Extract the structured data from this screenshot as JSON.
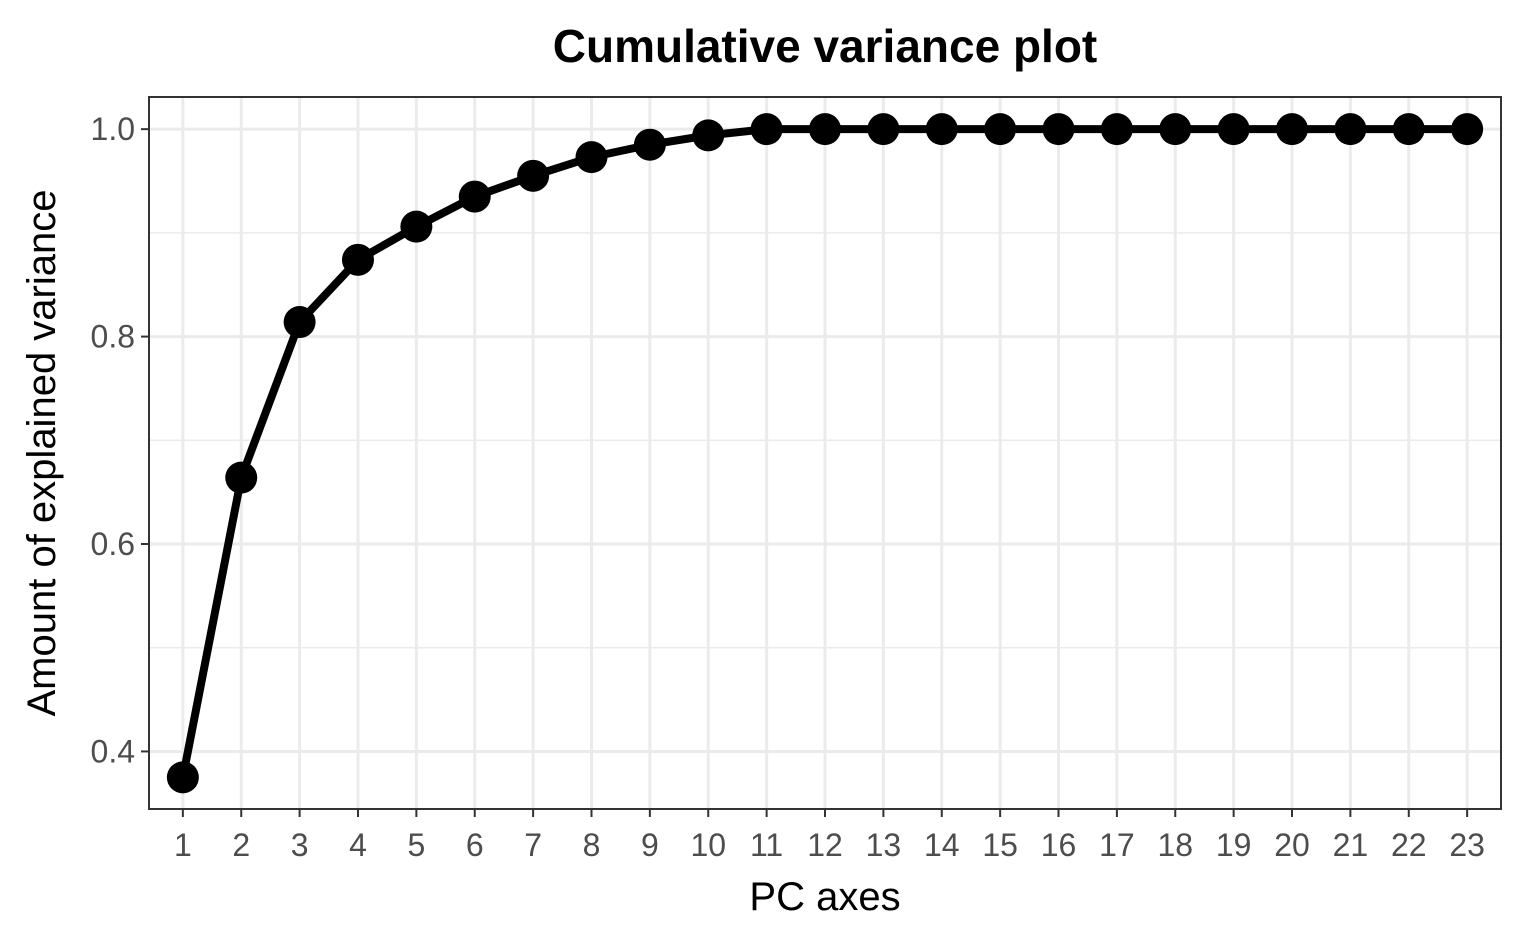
{
  "chart_data": {
    "type": "line",
    "title": "Cumulative variance plot",
    "xlabel": "PC axes",
    "ylabel": "Amount of explained variance",
    "x": [
      1,
      2,
      3,
      4,
      5,
      6,
      7,
      8,
      9,
      10,
      11,
      12,
      13,
      14,
      15,
      16,
      17,
      18,
      19,
      20,
      21,
      22,
      23
    ],
    "y": [
      0.375,
      0.664,
      0.814,
      0.874,
      0.906,
      0.935,
      0.955,
      0.973,
      0.985,
      0.994,
      1.0,
      1.0,
      1.0,
      1.0,
      1.0,
      1.0,
      1.0,
      1.0,
      1.0,
      1.0,
      1.0,
      1.0,
      1.0
    ],
    "xlim": [
      0.42,
      23.58
    ],
    "ylim": [
      0.3445,
      1.031
    ],
    "yticks": [
      0.4,
      0.6,
      0.8,
      1.0
    ],
    "ytick_labels": [
      "0.4",
      "0.6",
      "0.8",
      "1.0"
    ],
    "yminor": [
      0.5,
      0.7,
      0.9
    ],
    "xticks": [
      1,
      2,
      3,
      4,
      5,
      6,
      7,
      8,
      9,
      10,
      11,
      12,
      13,
      14,
      15,
      16,
      17,
      18,
      19,
      20,
      21,
      22,
      23
    ],
    "xtick_labels": [
      "1",
      "2",
      "3",
      "4",
      "5",
      "6",
      "7",
      "8",
      "9",
      "10",
      "11",
      "12",
      "13",
      "14",
      "15",
      "16",
      "17",
      "18",
      "19",
      "20",
      "21",
      "22",
      "23"
    ],
    "grid": true,
    "colors": {
      "line": "#000000",
      "points": "#000000",
      "grid": "#ebebeb",
      "panel_border": "#333333",
      "tick_label": "#4d4d4d"
    }
  }
}
